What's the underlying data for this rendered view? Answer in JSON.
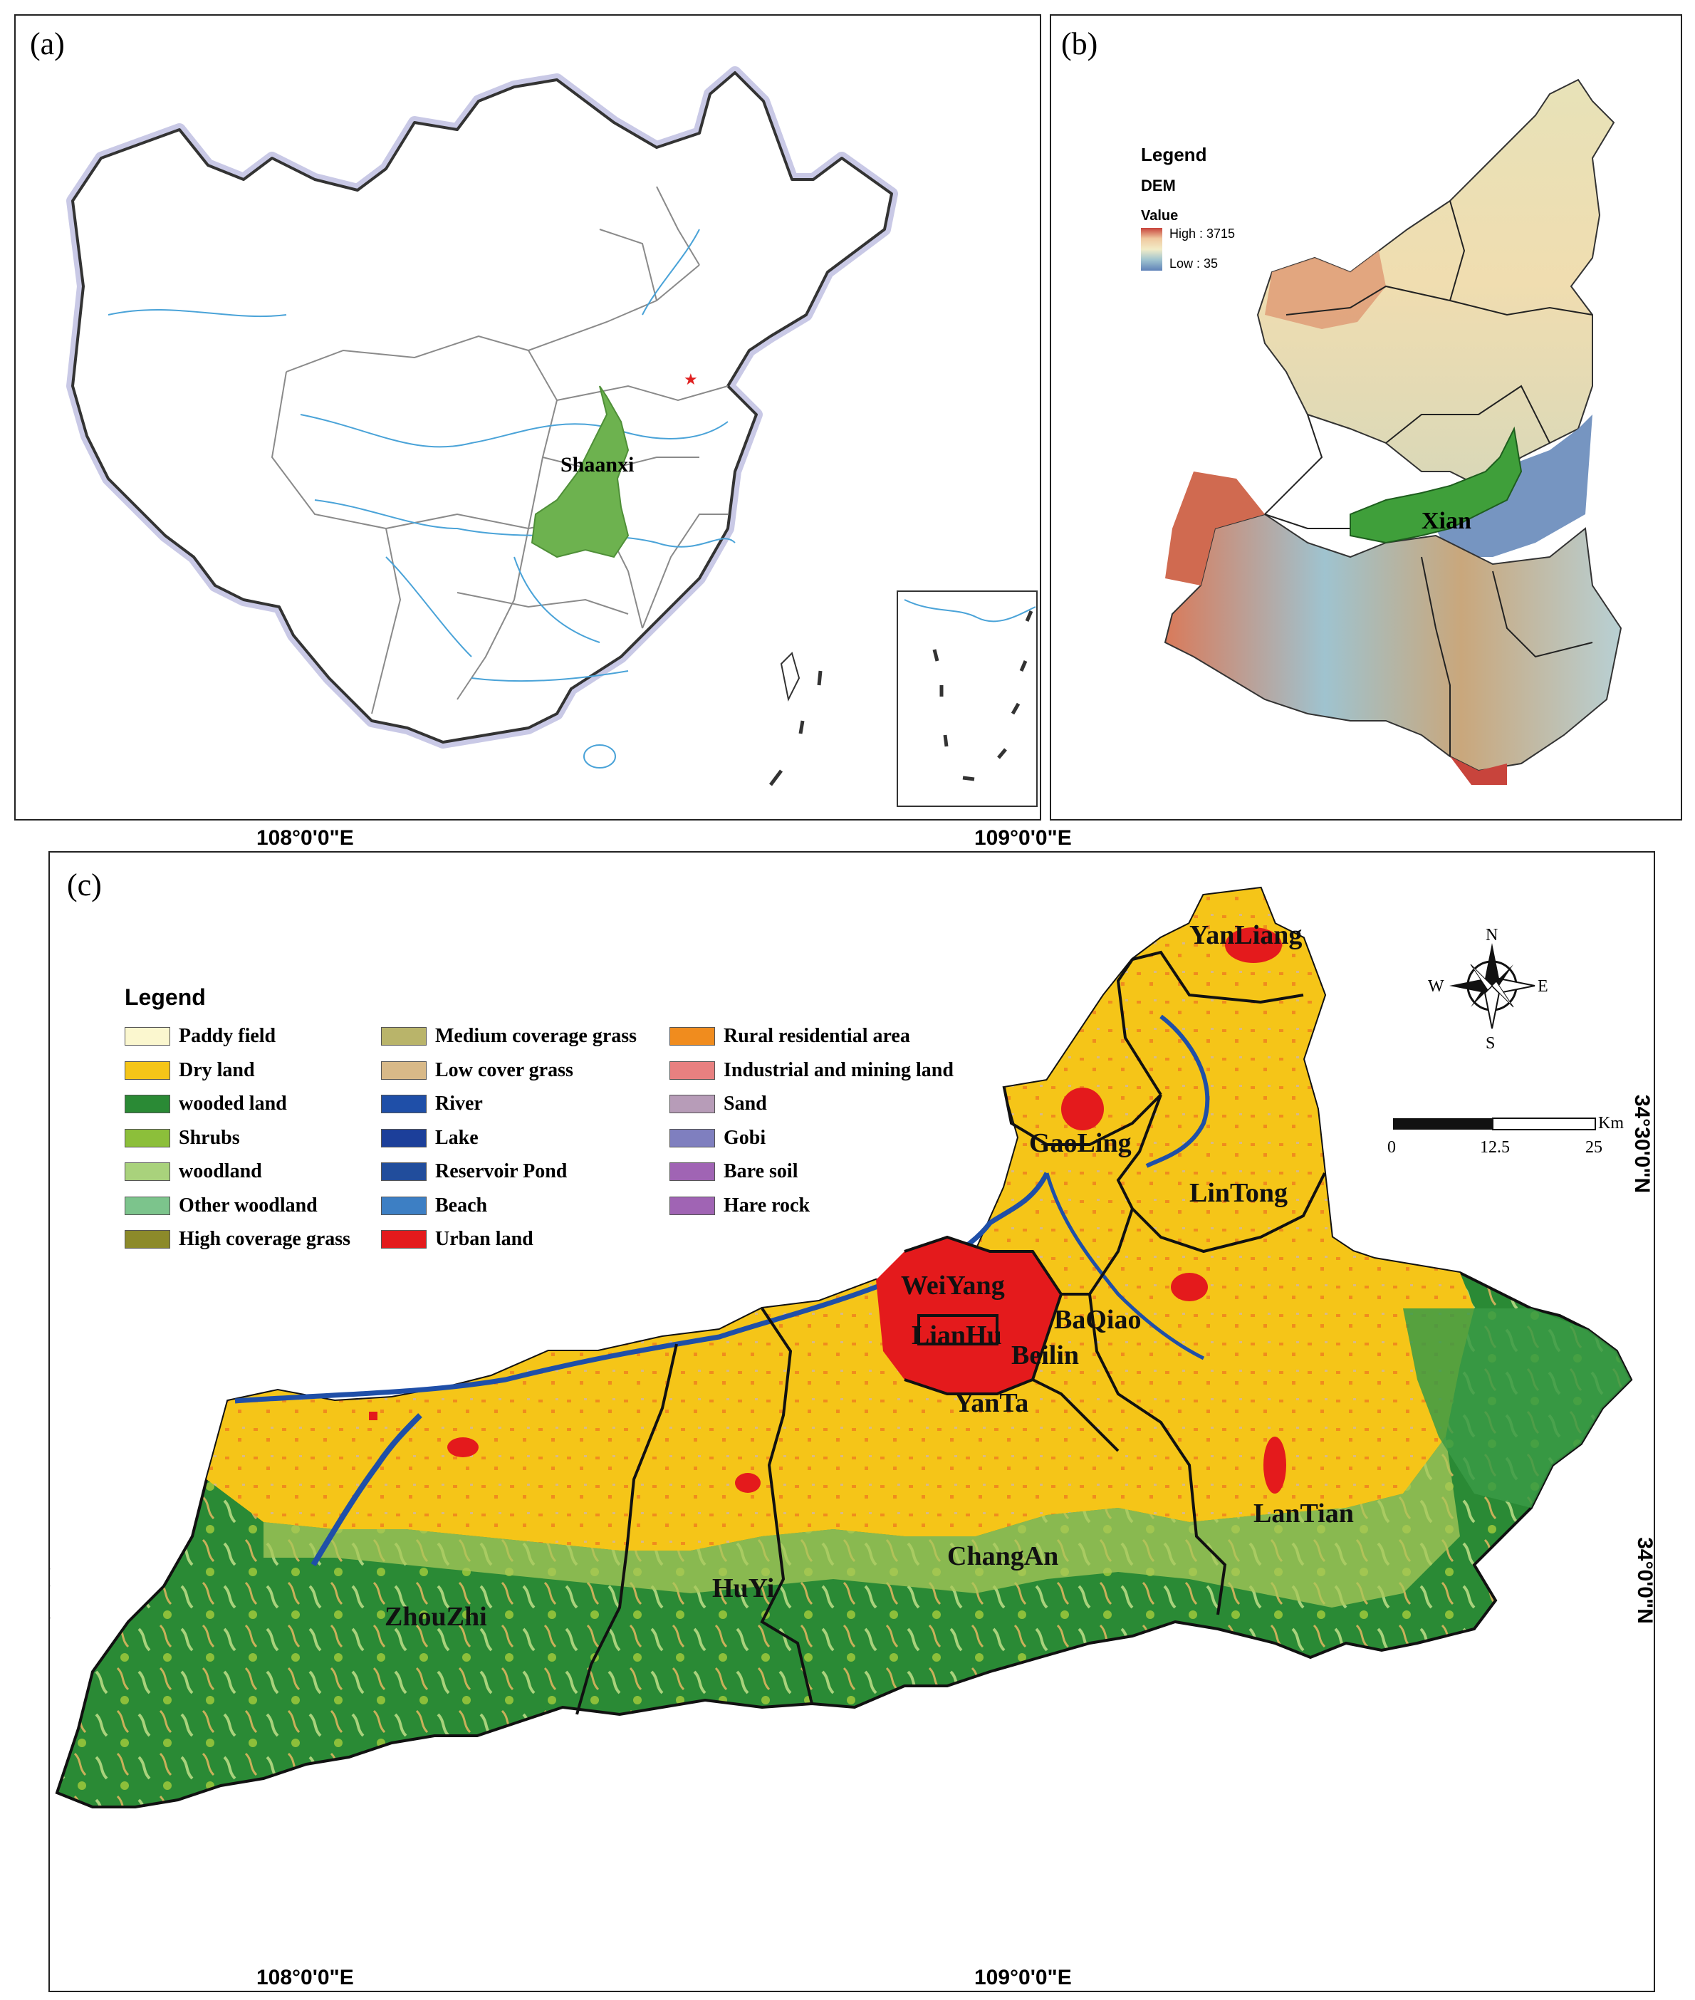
{
  "panels": {
    "a": {
      "label": "(a)",
      "province_label": "Shaanxi",
      "colors": {
        "province_fill": "#6db24f",
        "border": "#888888",
        "river": "#4aa3d8",
        "coast_halo": "#c9c9e6",
        "capital": "#e02020"
      }
    },
    "b": {
      "label": "(b)",
      "legend": {
        "title": "Legend",
        "layer": "DEM",
        "field": "Value",
        "high": "High : 3715",
        "low": "Low : 35"
      },
      "city_label": "Xian",
      "colors": {
        "city_fill": "#3f9f3a",
        "high": "#c8443c",
        "mid": "#f2ecc7",
        "low": "#5f82b8"
      }
    },
    "c": {
      "label": "(c)",
      "legend_title": "Legend",
      "legend_items": [
        {
          "label": "Paddy field",
          "color": "#fbf7cf"
        },
        {
          "label": "Dry land",
          "color": "#f5c518"
        },
        {
          "label": "wooded land",
          "color": "#2a8a35"
        },
        {
          "label": "Shrubs",
          "color": "#8cbf3a"
        },
        {
          "label": "woodland",
          "color": "#a9d27c"
        },
        {
          "label": "Other woodland",
          "color": "#7cc48c"
        },
        {
          "label": "High coverage grass",
          "color": "#8c8a2a"
        },
        {
          "label": "Medium coverage grass",
          "color": "#b9b46a"
        },
        {
          "label": "Low cover grass",
          "color": "#d8b988"
        },
        {
          "label": "River",
          "color": "#1f4fa8"
        },
        {
          "label": "Lake",
          "color": "#1c3f9a"
        },
        {
          "label": "Reservoir Pond",
          "color": "#214d9c"
        },
        {
          "label": "Beach",
          "color": "#3d7fc4"
        },
        {
          "label": "Urban land",
          "color": "#e41a1c"
        },
        {
          "label": "Rural residential area",
          "color": "#f08c1e"
        },
        {
          "label": "Industrial and mining land",
          "color": "#e88080"
        },
        {
          "label": "Sand",
          "color": "#b79cb8"
        },
        {
          "label": "Gobi",
          "color": "#7f7fbf"
        },
        {
          "label": "Bare soil",
          "color": "#a064b4"
        },
        {
          "label": "Hare rock",
          "color": "#a064b4"
        }
      ],
      "districts": [
        "YanLiang",
        "GaoLing",
        "LinTong",
        "WeiYang",
        "LianHu",
        "BaQiao",
        "Beilin",
        "YanTa",
        "LanTian",
        "ChangAn",
        "HuYi",
        "ZhouZhi"
      ],
      "compass": {
        "n": "N",
        "s": "S",
        "e": "E",
        "w": "W"
      },
      "scale_bar": {
        "unit": "Km",
        "ticks": [
          "0",
          "12.5",
          "25"
        ]
      }
    }
  },
  "coordinates": {
    "top_lon_108": "108°0'0\"E",
    "top_lon_109": "109°0'0\"E",
    "bottom_lon_108": "108°0'0\"E",
    "bottom_lon_109": "109°0'0\"E",
    "lat_34_30": "34°30'0\"N",
    "lat_34_0": "34°0'0\"N"
  }
}
